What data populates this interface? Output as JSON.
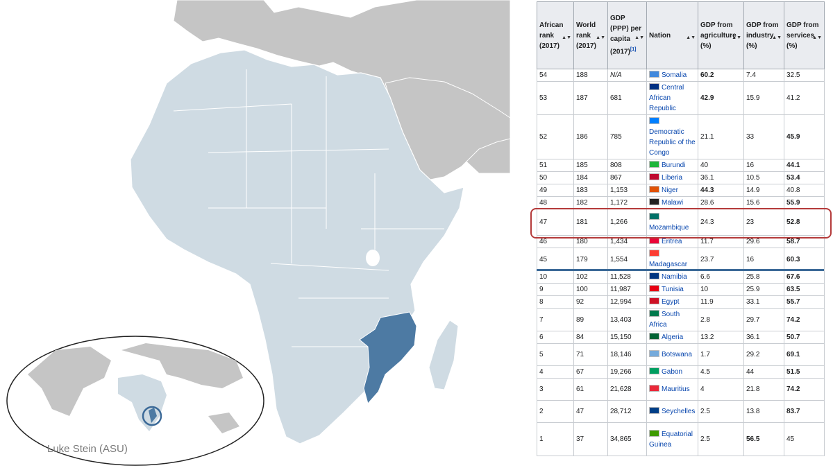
{
  "map": {
    "credit": "Luke Stein (ASU)",
    "highlighted_country": "Mozambique",
    "colors": {
      "land": "#c5c5c5",
      "africa": "#cfdbe3",
      "highlight": "#4d7aa3",
      "ocean": "#ffffff",
      "border": "#ffffff"
    }
  },
  "table": {
    "headers": {
      "african_rank": "African rank (2017)",
      "world_rank": "World rank (2017)",
      "gdp_ppp": "GDP (PPP) per capita (2017)",
      "gdp_ppp_ref": "[1]",
      "nation": "Nation",
      "agriculture": "GDP from agriculture (%)",
      "industry": "GDP from industry (%)",
      "services": "GDP from services (%)"
    },
    "rows": [
      {
        "african_rank": "54",
        "world_rank": "188",
        "gdp": "N/A",
        "nation": "Somalia",
        "agri": "60.2",
        "ind": "7.4",
        "serv": "32.5",
        "flag": "#4189dd"
      },
      {
        "african_rank": "53",
        "world_rank": "187",
        "gdp": "681",
        "nation": "Central African Republic",
        "agri": "42.9",
        "ind": "15.9",
        "serv": "41.2",
        "flag": "#003082"
      },
      {
        "african_rank": "52",
        "world_rank": "186",
        "gdp": "785",
        "nation": "Democratic Republic of the Congo",
        "agri": "21.1",
        "ind": "33",
        "serv": "45.9",
        "flag": "#007fff"
      },
      {
        "african_rank": "51",
        "world_rank": "185",
        "gdp": "808",
        "nation": "Burundi",
        "agri": "40",
        "ind": "16",
        "serv": "44.1",
        "flag": "#1eb53a"
      },
      {
        "african_rank": "50",
        "world_rank": "184",
        "gdp": "867",
        "nation": "Liberia",
        "agri": "36.1",
        "ind": "10.5",
        "serv": "53.4",
        "flag": "#bf0a30"
      },
      {
        "african_rank": "49",
        "world_rank": "183",
        "gdp": "1,153",
        "nation": "Niger",
        "agri": "44.3",
        "ind": "14.9",
        "serv": "40.8",
        "flag": "#e05206"
      },
      {
        "african_rank": "48",
        "world_rank": "182",
        "gdp": "1,172",
        "nation": "Malawi",
        "agri": "28.6",
        "ind": "15.6",
        "serv": "55.9",
        "flag": "#222222"
      },
      {
        "african_rank": "47",
        "world_rank": "181",
        "gdp": "1,266",
        "nation": "Mozambique",
        "agri": "24.3",
        "ind": "23",
        "serv": "52.8",
        "flag": "#007168"
      },
      {
        "african_rank": "46",
        "world_rank": "180",
        "gdp": "1,434",
        "nation": "Eritrea",
        "agri": "11.7",
        "ind": "29.6",
        "serv": "58.7",
        "flag": "#ea0437"
      },
      {
        "african_rank": "45",
        "world_rank": "179",
        "gdp": "1,554",
        "nation": "Madagascar",
        "agri": "23.7",
        "ind": "16",
        "serv": "60.3",
        "flag": "#fc3d32"
      },
      {
        "african_rank": "10",
        "world_rank": "102",
        "gdp": "11,528",
        "nation": "Namibia",
        "agri": "6.6",
        "ind": "25.8",
        "serv": "67.6",
        "flag": "#003580"
      },
      {
        "african_rank": "9",
        "world_rank": "100",
        "gdp": "11,987",
        "nation": "Tunisia",
        "agri": "10",
        "ind": "25.9",
        "serv": "63.5",
        "flag": "#e70013"
      },
      {
        "african_rank": "8",
        "world_rank": "92",
        "gdp": "12,994",
        "nation": "Egypt",
        "agri": "11.9",
        "ind": "33.1",
        "serv": "55.7",
        "flag": "#ce1126"
      },
      {
        "african_rank": "7",
        "world_rank": "89",
        "gdp": "13,403",
        "nation": "South Africa",
        "agri": "2.8",
        "ind": "29.7",
        "serv": "74.2",
        "flag": "#007a4d"
      },
      {
        "african_rank": "6",
        "world_rank": "84",
        "gdp": "15,150",
        "nation": "Algeria",
        "agri": "13.2",
        "ind": "36.1",
        "serv": "50.7",
        "flag": "#006233"
      },
      {
        "african_rank": "5",
        "world_rank": "71",
        "gdp": "18,146",
        "nation": "Botswana",
        "agri": "1.7",
        "ind": "29.2",
        "serv": "69.1",
        "flag": "#75aadb"
      },
      {
        "african_rank": "4",
        "world_rank": "67",
        "gdp": "19,266",
        "nation": "Gabon",
        "agri": "4.5",
        "ind": "44",
        "serv": "51.5",
        "flag": "#009e60"
      },
      {
        "african_rank": "3",
        "world_rank": "61",
        "gdp": "21,628",
        "nation": "Mauritius",
        "agri": "4",
        "ind": "21.8",
        "serv": "74.2",
        "flag": "#ea2839"
      },
      {
        "african_rank": "2",
        "world_rank": "47",
        "gdp": "28,712",
        "nation": "Seychelles",
        "agri": "2.5",
        "ind": "13.8",
        "serv": "83.7",
        "flag": "#003f87"
      },
      {
        "african_rank": "1",
        "world_rank": "37",
        "gdp": "34,865",
        "nation": "Equatorial Guinea",
        "agri": "2.5",
        "ind": "56.5",
        "serv": "45",
        "flag": "#3e9a00"
      }
    ]
  }
}
